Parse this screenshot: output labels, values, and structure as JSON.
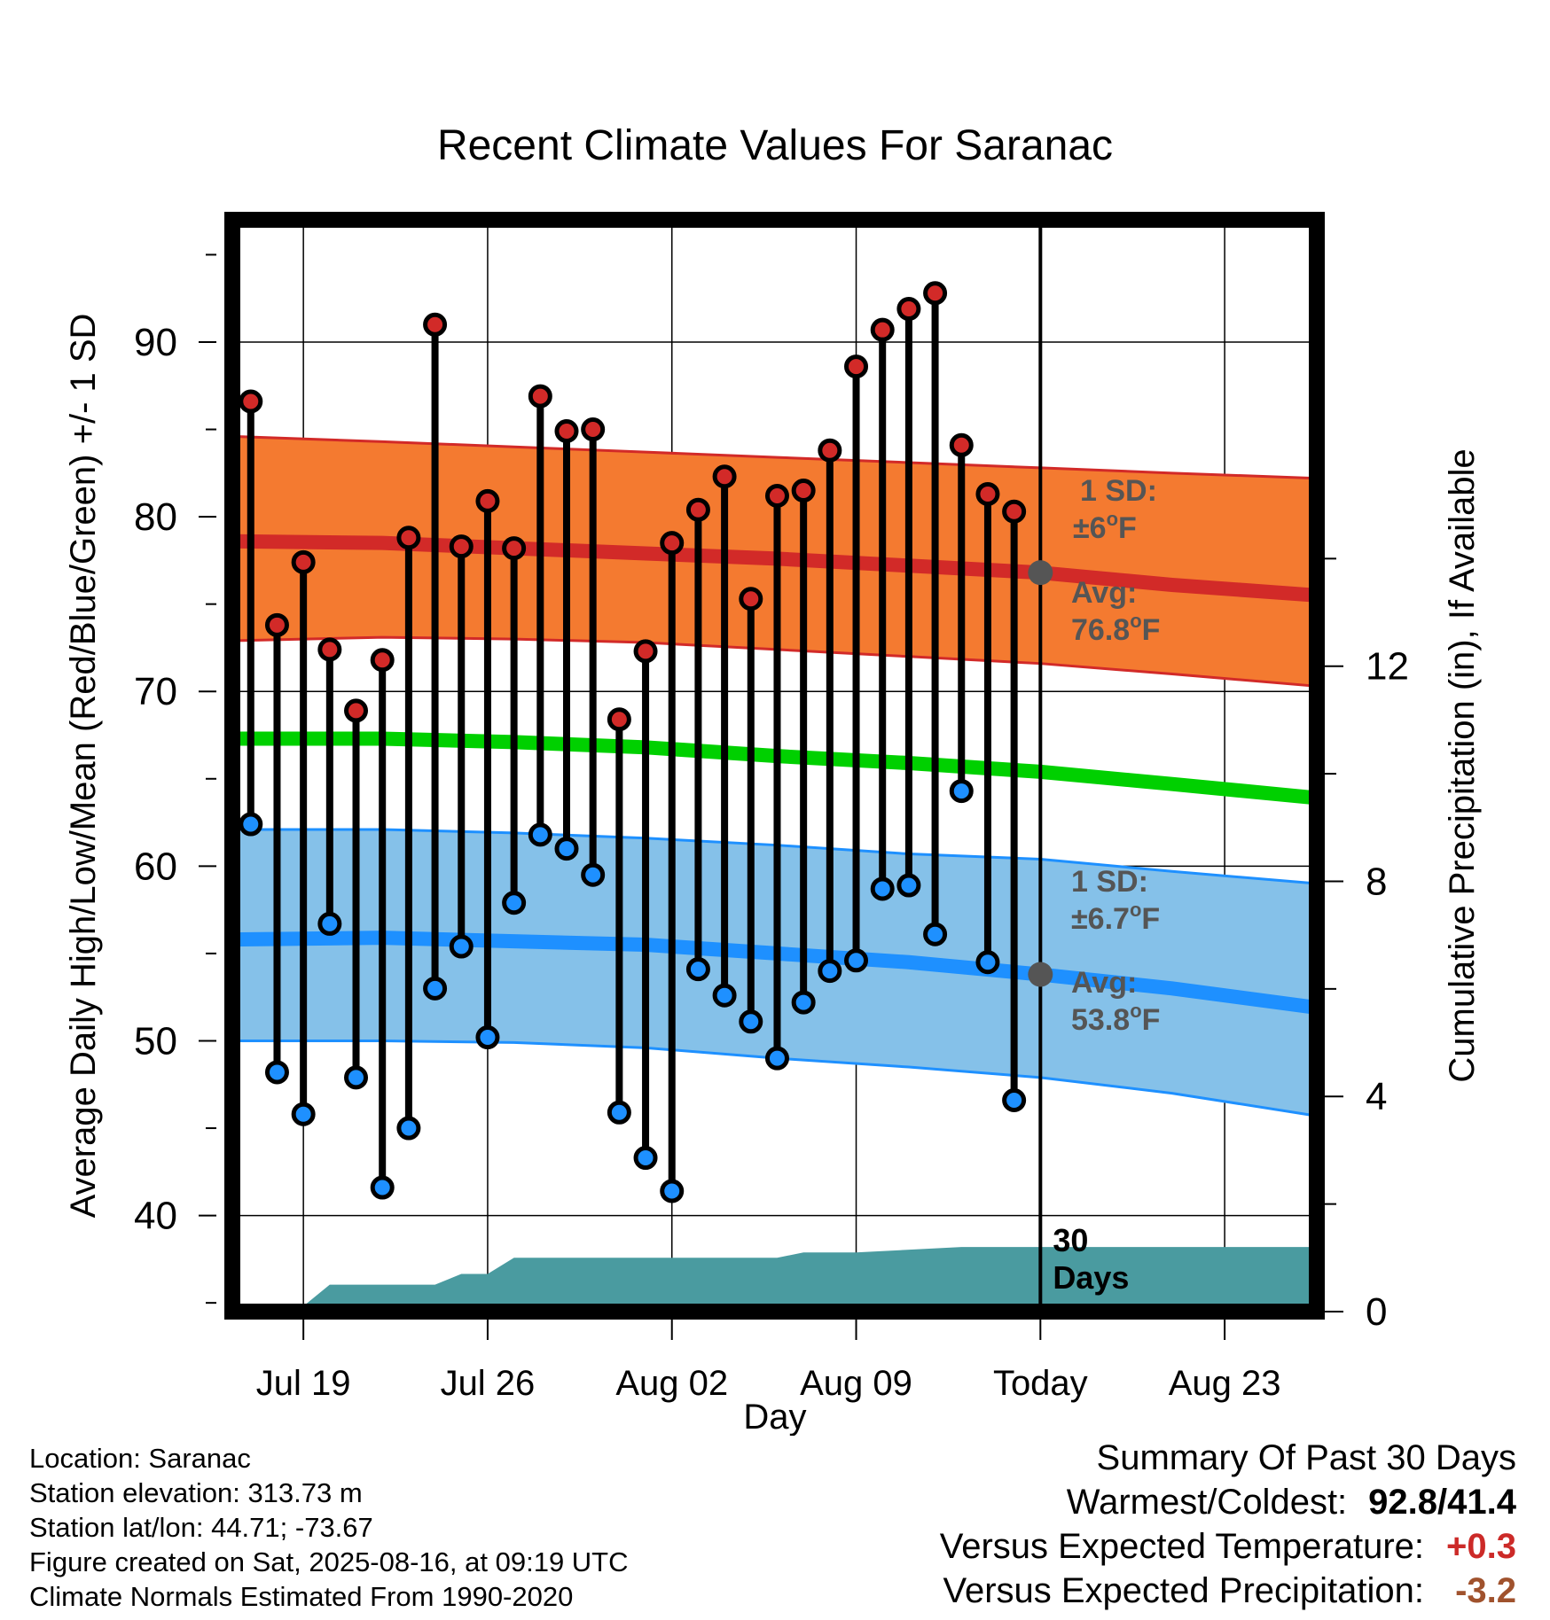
{
  "chart_data": {
    "type": "line",
    "title": "Recent Climate Values For Saranac",
    "xlabel": "Day",
    "ylabel": "Average Daily High/Low/Mean (Red/Blue/Green) +/- 1 SD",
    "y2label": "Cumulative Precipitation (in), If Available",
    "ylim": [
      34.5,
      97
    ],
    "y2lim": [
      0,
      20.3
    ],
    "yticks": [
      40,
      50,
      60,
      70,
      80,
      90
    ],
    "y2ticks": [
      0,
      4,
      8,
      12
    ],
    "x_ticks": [
      {
        "day": 2,
        "label": "Jul 19"
      },
      {
        "day": 9,
        "label": "Jul 26"
      },
      {
        "day": 16,
        "label": "Aug 02"
      },
      {
        "day": 23,
        "label": "Aug 09"
      },
      {
        "day": 30,
        "label": "Today"
      },
      {
        "day": 37,
        "label": "Aug 23"
      }
    ],
    "x_day_reference": "day 0 = Jul 17; day 30 = Today (Aug 16)",
    "xlim": [
      -0.7,
      40.5
    ],
    "grid": true,
    "today_line_day": 30,
    "today_label": [
      "30",
      "Days"
    ],
    "highs": [
      86.6,
      73.8,
      77.4,
      72.4,
      68.9,
      71.8,
      78.8,
      91.0,
      78.3,
      80.9,
      78.2,
      86.9,
      84.9,
      85.0,
      68.4,
      72.3,
      78.5,
      80.4,
      82.3,
      75.3,
      81.2,
      81.5,
      83.8,
      88.6,
      90.7,
      91.9,
      92.8,
      84.1,
      81.3,
      80.3
    ],
    "lows": [
      62.4,
      48.2,
      45.8,
      56.7,
      47.9,
      41.6,
      45.0,
      53.0,
      55.4,
      50.2,
      57.9,
      61.8,
      61.0,
      59.5,
      45.9,
      43.3,
      41.4,
      54.1,
      52.6,
      51.1,
      49.0,
      52.2,
      54.0,
      54.6,
      58.7,
      58.9,
      56.1,
      64.3,
      54.5,
      46.6
    ],
    "normals": {
      "days": [
        -0.7,
        5,
        10,
        15,
        20,
        25,
        30,
        35,
        40.5
      ],
      "avg_high": [
        78.6,
        78.5,
        78.2,
        77.9,
        77.6,
        77.2,
        76.8,
        76.1,
        75.5
      ],
      "avg_high_upper": [
        84.6,
        84.3,
        84.0,
        83.7,
        83.4,
        83.1,
        82.8,
        82.5,
        82.2
      ],
      "avg_high_lower": [
        72.9,
        73.1,
        73.0,
        72.8,
        72.4,
        72.0,
        71.6,
        71.0,
        70.3
      ],
      "avg_mean": [
        67.3,
        67.3,
        67.1,
        66.8,
        66.3,
        65.9,
        65.4,
        64.7,
        63.9
      ],
      "avg_low": [
        55.8,
        55.9,
        55.7,
        55.5,
        55.0,
        54.5,
        53.8,
        53.0,
        51.9
      ],
      "avg_low_upper": [
        62.1,
        62.1,
        61.9,
        61.6,
        61.2,
        60.7,
        60.4,
        59.7,
        59.0
      ],
      "avg_low_lower": [
        50.0,
        50.0,
        49.9,
        49.6,
        49.0,
        48.5,
        47.9,
        47.0,
        45.7
      ]
    },
    "precip_cumulative": {
      "days": [
        -0.7,
        0,
        2,
        3,
        5,
        7,
        8,
        9,
        10,
        12,
        16,
        20,
        21,
        23,
        27,
        30,
        35,
        40.5
      ],
      "values": [
        0.0,
        0.1,
        0.1,
        0.5,
        0.5,
        0.5,
        0.7,
        0.7,
        1.0,
        1.0,
        1.0,
        1.0,
        1.1,
        1.1,
        1.2,
        1.2,
        1.2,
        1.2
      ]
    },
    "annotations": {
      "high_sd_label": "1 SD:",
      "high_sd_value": "±6",
      "high_avg_label": "Avg:",
      "high_avg_value": "76.8",
      "low_sd_label": "1 SD:",
      "low_sd_value": "±6.7",
      "low_avg_label": "Avg:",
      "low_avg_value": "53.8",
      "deg_sup": "o",
      "unit": "F"
    },
    "colors": {
      "high_band": "#f47a30",
      "high_line": "#d22a28",
      "mean_line": "#00d000",
      "low_band": "#85c1e9",
      "low_line": "#1e90ff",
      "precip_fill": "#4a9ba0",
      "high_marker": "#d22a28",
      "low_marker": "#1e90ff",
      "annotation_text": "#555555",
      "avg_dot": "#555555"
    }
  },
  "info": {
    "location": "Location: Saranac",
    "elevation": "Station elevation: 313.73 m",
    "latlon": "Station lat/lon: 44.71; -73.67",
    "created": "Figure created on Sat, 2025-08-16, at 09:19 UTC",
    "normals": "Climate Normals Estimated From 1990-2020"
  },
  "summary": {
    "heading": "Summary Of Past 30 Days",
    "warmest_label": "Warmest/Coldest:",
    "warmest_value": "92.8/41.4",
    "temp_label": "Versus Expected Temperature:",
    "temp_value": "+0.3",
    "temp_color": "#cc2a28",
    "precip_label": "Versus Expected Precipitation:",
    "precip_value": "-3.2",
    "precip_color": "#a0522d"
  }
}
